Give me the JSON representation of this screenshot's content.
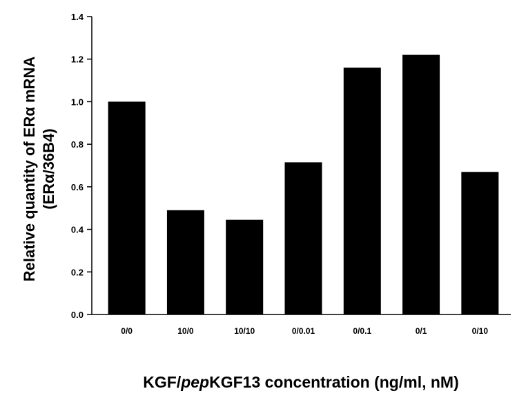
{
  "chart_data": {
    "type": "bar",
    "categories": [
      "0/0",
      "10/0",
      "10/10",
      "0/0.01",
      "0/0.1",
      "0/1",
      "0/10"
    ],
    "values": [
      1.0,
      0.49,
      0.445,
      0.715,
      1.16,
      1.22,
      0.67
    ],
    "xlabel_parts": [
      "KGF/",
      "pep",
      "KGF13 concentration (ng/ml, nM)"
    ],
    "ylabel_line1": "Relative quantity of ERα mRNA",
    "ylabel_line2": "(ERα/36B4)",
    "ylim": [
      0,
      1.4
    ],
    "yticks": [
      "0.0",
      "0.2",
      "0.4",
      "0.6",
      "0.8",
      "1.0",
      "1.2",
      "1.4"
    ],
    "grid": false,
    "bar_color": "#000000"
  }
}
